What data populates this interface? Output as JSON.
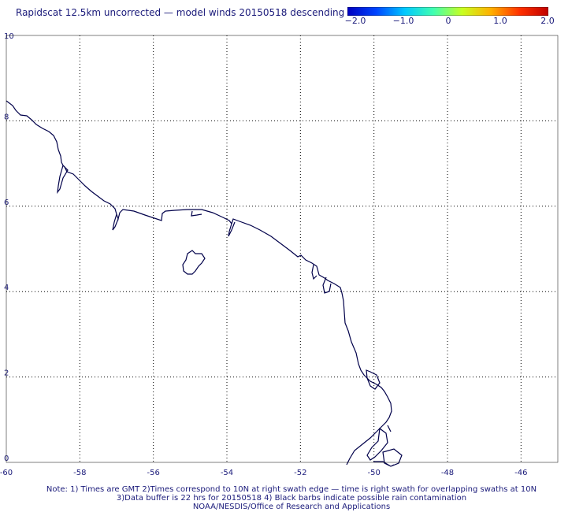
{
  "title": "Rapidscat 12.5km uncorrected — model winds 20150518 descending",
  "colorbar": {
    "labels": [
      "−2.0",
      "−1.0",
      "0",
      "1.0",
      "2.0"
    ],
    "stops": [
      "#0000c0",
      "#0044ff",
      "#00c8ff",
      "#40ffb0",
      "#c8ff20",
      "#ffb000",
      "#ff3000",
      "#c00000"
    ]
  },
  "map": {
    "lon_range": [
      -60,
      -45
    ],
    "lat_range": [
      0,
      10
    ],
    "lon_ticks": [
      "-60",
      "-58",
      "-56",
      "-54",
      "-52",
      "-50",
      "-48",
      "-46"
    ],
    "lat_ticks": [
      "10",
      "8",
      "6",
      "4",
      "2",
      "0"
    ],
    "grid": "dotted",
    "coast_color": "#00004a"
  },
  "notes": [
    "Note: 1) Times are GMT 2)Times correspond to 10N at right swath edge — time is right swath for overlapping swaths at 10N",
    "3)Data buffer is 22 hrs for 20150518 4) Black barbs indicate possible rain contamination",
    "NOAA/NESDIS/Office of Research and Applications"
  ]
}
